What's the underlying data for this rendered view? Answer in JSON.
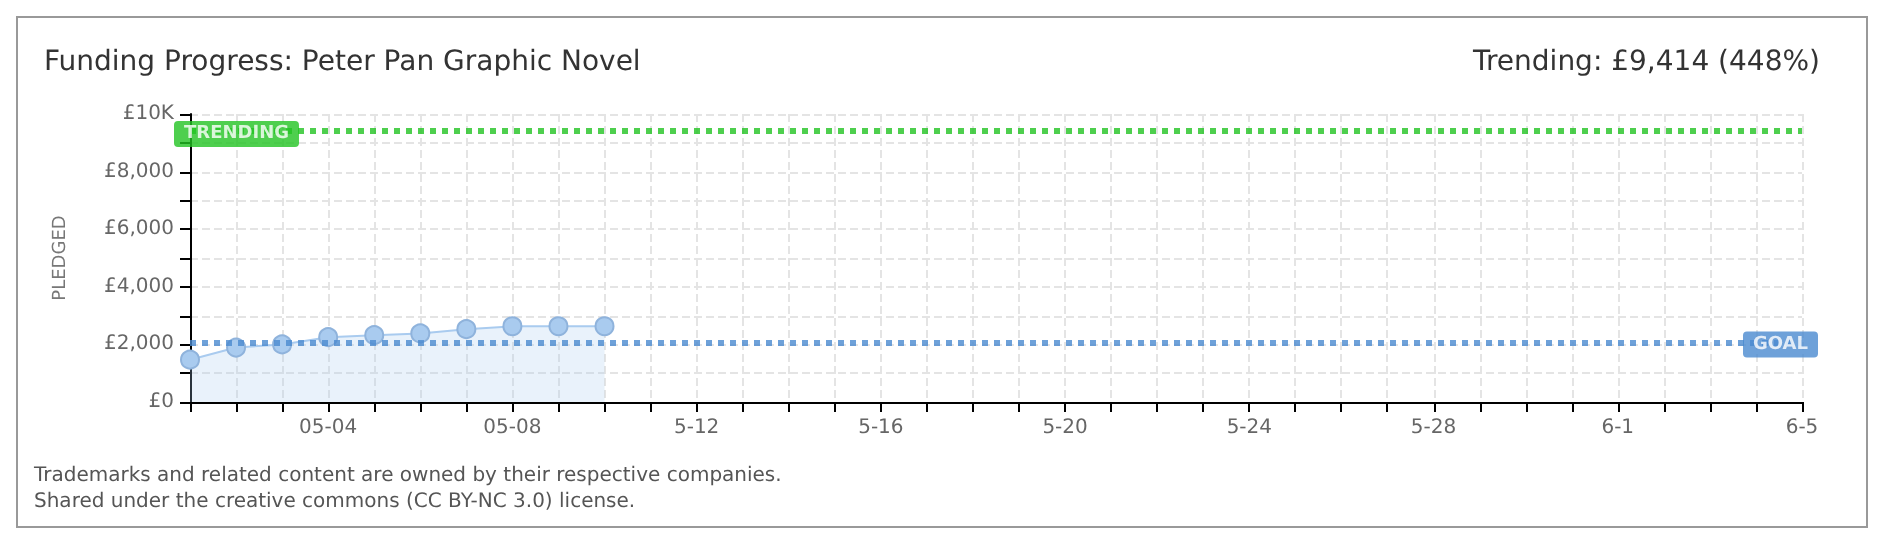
{
  "chart_data": {
    "type": "area",
    "title": "Funding Progress: Peter Pan Graphic Novel",
    "subtitle": "Trending: £9,414 (448%)",
    "ylabel": "PLEDGED",
    "categories": [
      null,
      null,
      null,
      "05-04",
      null,
      null,
      null,
      "05-08",
      null,
      null,
      null,
      "5-12",
      null,
      null,
      null,
      "5-16",
      null,
      null,
      null,
      "5-20",
      null,
      null,
      null,
      "5-24",
      null,
      null,
      null,
      "5-28",
      null,
      null,
      null,
      "6-1",
      null,
      null,
      null,
      "6-5"
    ],
    "series": [
      {
        "color": "#a9cbef",
        "values": [
          1470,
          1890,
          2000,
          2250,
          2320,
          2380,
          2530,
          2630,
          2630,
          2630,
          null,
          null,
          null,
          null,
          null,
          null,
          null,
          null,
          null,
          null,
          null,
          null,
          null,
          null,
          null,
          null,
          null,
          null,
          null,
          null,
          null,
          null,
          null,
          null,
          null,
          null
        ]
      }
    ],
    "ylim": [
      0,
      10000
    ],
    "yticks": [
      {
        "value": 0,
        "label": "£0"
      },
      {
        "value": 1000,
        "label": null
      },
      {
        "value": 2000,
        "label": "£2,000"
      },
      {
        "value": 3000,
        "label": null
      },
      {
        "value": 4000,
        "label": "£4,000"
      },
      {
        "value": 5000,
        "label": null
      },
      {
        "value": 6000,
        "label": "£6,000"
      },
      {
        "value": 7000,
        "label": null
      },
      {
        "value": 8000,
        "label": "£8,000"
      },
      {
        "value": 9000,
        "label": null
      },
      {
        "value": 10000,
        "label": "£10K"
      }
    ],
    "ref_lines": [
      {
        "axis": "y",
        "value": 9414,
        "label": "TRENDING",
        "color": "#22c322",
        "line_style": "dotted"
      },
      {
        "axis": "y",
        "value": 2100,
        "label": "GOAL",
        "color": "#4a8ad0",
        "line_style": "dotted"
      }
    ],
    "grid": true,
    "marker": "circle",
    "annotations": [
      "Trademarks and related content are owned by their respective companies.",
      "Shared under the creative commons (CC BY-NC 3.0) license."
    ]
  }
}
